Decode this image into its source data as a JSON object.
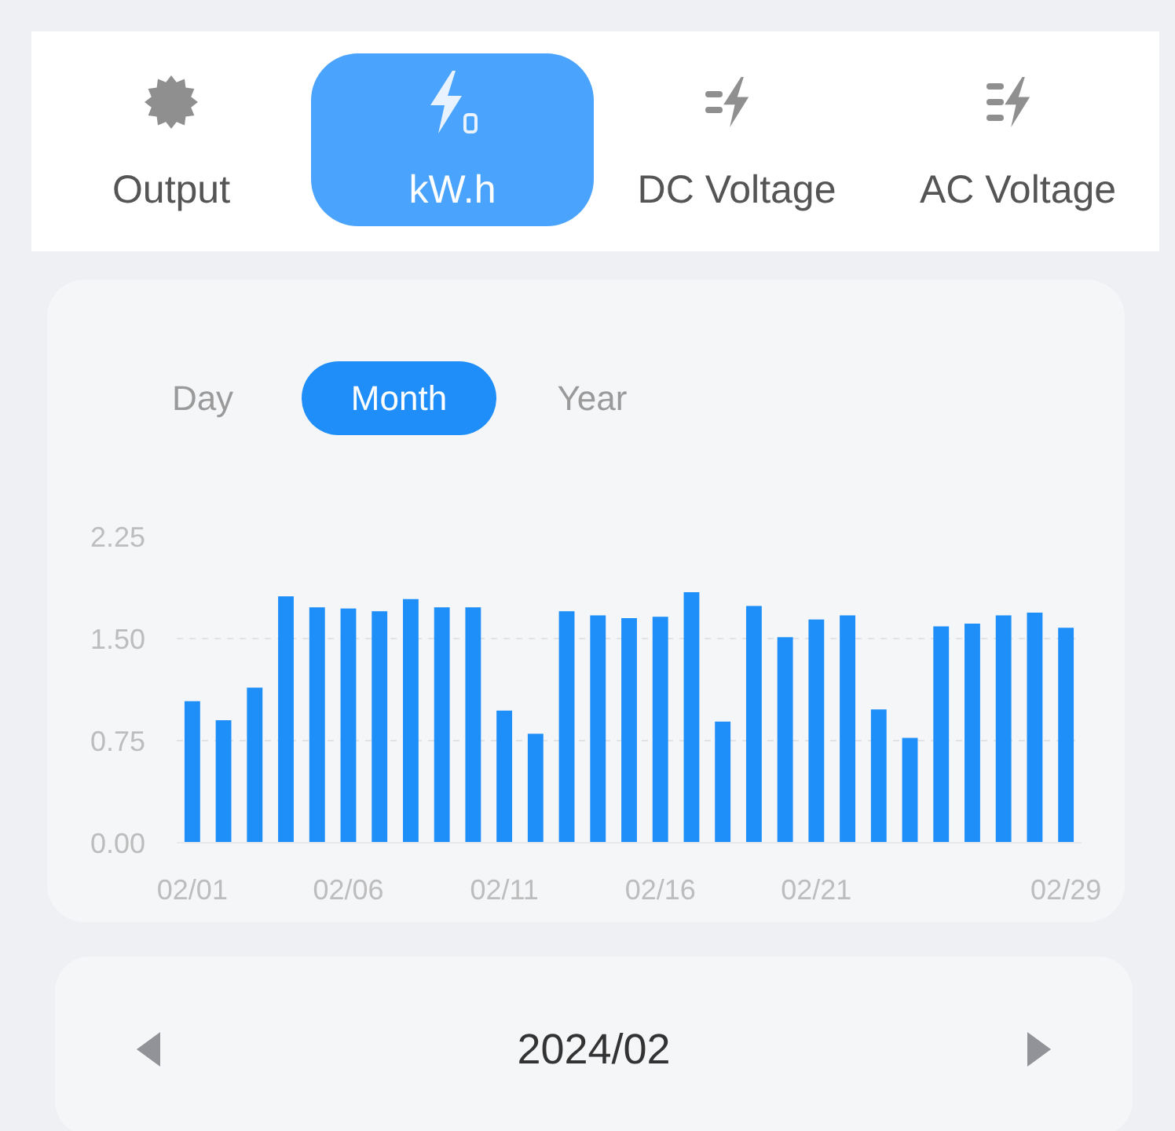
{
  "chart_data": {
    "type": "bar",
    "categories": [
      "02/01",
      null,
      null,
      null,
      null,
      "02/06",
      null,
      null,
      null,
      null,
      "02/11",
      null,
      null,
      null,
      null,
      "02/16",
      null,
      null,
      null,
      null,
      "02/21",
      null,
      null,
      null,
      null,
      null,
      null,
      null,
      "02/29"
    ],
    "values": [
      1.04,
      0.9,
      1.14,
      1.81,
      1.73,
      1.72,
      1.7,
      1.79,
      1.73,
      1.73,
      0.97,
      0.8,
      1.7,
      1.67,
      1.65,
      1.66,
      1.84,
      0.89,
      1.74,
      1.51,
      1.64,
      1.67,
      0.98,
      0.77,
      1.59,
      1.61,
      1.67,
      1.69,
      1.58
    ],
    "color": "#1e8ef8",
    "ylim": [
      0,
      2.25
    ],
    "yticks": [
      {
        "value": 0,
        "label": "0.00"
      },
      {
        "value": 0.75,
        "label": "0.75"
      },
      {
        "value": 1.5,
        "label": "1.50"
      },
      {
        "value": 2.25,
        "label": "2.25"
      }
    ],
    "grid": "y",
    "annotations": [
      "Output",
      "kW.h",
      "DC Voltage",
      "AC Voltage",
      "Day",
      "Month",
      "Year",
      "2024/02"
    ]
  }
}
